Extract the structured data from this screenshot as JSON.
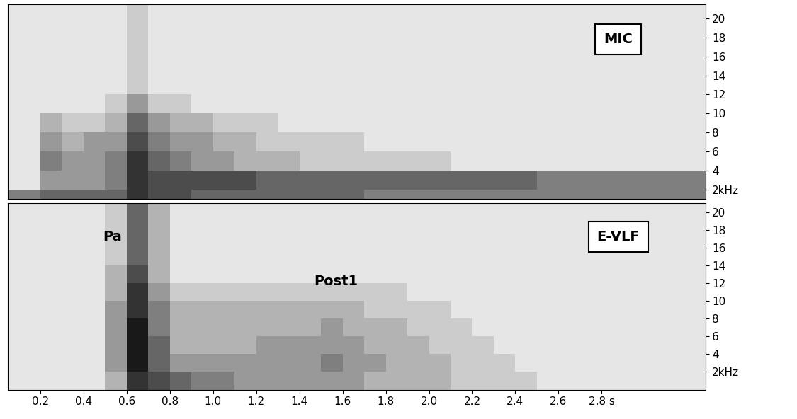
{
  "chart_data": [
    {
      "type": "heatmap",
      "title": "MIC",
      "tick_labels": "y",
      "xlim": [
        0.05,
        3.28
      ],
      "ylim": [
        1,
        21.5
      ],
      "xticks": [
        0.2,
        0.4,
        0.6,
        0.8,
        1.0,
        1.2,
        1.4,
        1.6,
        1.8,
        2.0,
        2.2,
        2.4,
        2.6,
        {
          "value": 2.8,
          "label": "2.8 s"
        }
      ],
      "yticks": [
        {
          "value": 2,
          "label": "2kHz"
        },
        4,
        6,
        8,
        10,
        12,
        14,
        16,
        18,
        20
      ],
      "zlim": [
        0,
        10
      ],
      "time_edges": [
        0.0,
        0.1,
        0.2,
        0.3,
        0.4,
        0.5,
        0.6,
        0.7,
        0.8,
        0.9,
        1.0,
        1.1,
        1.2,
        1.3,
        1.4,
        1.5,
        1.6,
        1.7,
        1.8,
        1.9,
        2.0,
        2.1,
        2.2,
        2.3,
        2.4,
        2.5,
        2.6,
        2.7,
        2.8,
        2.9,
        3.0,
        3.1,
        3.2,
        3.3
      ],
      "freq_edges": [
        0,
        2,
        4,
        6,
        8,
        10,
        12,
        14,
        16,
        18,
        20,
        22
      ],
      "cells": [
        [
          5,
          5,
          6,
          6,
          6,
          6,
          8,
          7,
          7,
          6,
          6,
          6,
          6,
          6,
          6,
          6,
          6,
          5,
          5,
          5,
          5,
          5,
          5,
          5,
          5,
          5,
          5,
          5,
          5,
          5,
          5,
          5,
          5
        ],
        [
          1,
          1,
          4,
          4,
          4,
          5,
          8,
          7,
          7,
          7,
          7,
          7,
          6,
          6,
          6,
          6,
          6,
          6,
          6,
          6,
          6,
          6,
          6,
          6,
          6,
          5,
          5,
          5,
          5,
          5,
          5,
          5,
          5
        ],
        [
          1,
          1,
          5,
          4,
          4,
          5,
          8,
          6,
          5,
          4,
          4,
          3,
          3,
          3,
          2,
          2,
          2,
          2,
          2,
          2,
          2,
          1,
          1,
          1,
          1,
          1,
          1,
          1,
          1,
          1,
          1,
          1,
          1
        ],
        [
          1,
          1,
          4,
          3,
          4,
          4,
          7,
          5,
          4,
          4,
          3,
          3,
          2,
          2,
          2,
          2,
          2,
          1,
          1,
          1,
          1,
          1,
          1,
          1,
          1,
          1,
          1,
          1,
          1,
          1,
          1,
          1,
          1
        ],
        [
          1,
          1,
          3,
          2,
          2,
          3,
          6,
          4,
          3,
          3,
          2,
          2,
          2,
          1,
          1,
          1,
          1,
          1,
          1,
          1,
          1,
          1,
          1,
          1,
          1,
          1,
          1,
          1,
          1,
          1,
          1,
          1,
          1
        ],
        [
          1,
          1,
          1,
          1,
          1,
          2,
          4,
          2,
          2,
          1,
          1,
          1,
          1,
          1,
          1,
          1,
          1,
          1,
          1,
          1,
          1,
          1,
          1,
          1,
          1,
          1,
          1,
          1,
          1,
          1,
          1,
          1,
          1
        ],
        [
          1,
          1,
          1,
          1,
          1,
          1,
          2,
          1,
          1,
          1,
          1,
          1,
          1,
          1,
          1,
          1,
          1,
          1,
          1,
          1,
          1,
          1,
          1,
          1,
          1,
          1,
          1,
          1,
          1,
          1,
          1,
          1,
          1
        ],
        [
          1,
          1,
          1,
          1,
          1,
          1,
          2,
          1,
          1,
          1,
          1,
          1,
          1,
          1,
          1,
          1,
          1,
          1,
          1,
          1,
          1,
          1,
          1,
          1,
          1,
          1,
          1,
          1,
          1,
          1,
          1,
          1,
          1
        ],
        [
          1,
          1,
          1,
          1,
          1,
          1,
          2,
          1,
          1,
          1,
          1,
          1,
          1,
          1,
          1,
          1,
          1,
          1,
          1,
          1,
          1,
          1,
          1,
          1,
          1,
          1,
          1,
          1,
          1,
          1,
          1,
          1,
          1
        ],
        [
          1,
          1,
          1,
          1,
          1,
          1,
          2,
          1,
          1,
          1,
          1,
          1,
          1,
          1,
          1,
          1,
          1,
          1,
          1,
          1,
          1,
          1,
          1,
          1,
          1,
          1,
          1,
          1,
          1,
          1,
          1,
          1,
          1
        ],
        [
          1,
          1,
          1,
          1,
          1,
          1,
          2,
          1,
          1,
          1,
          1,
          1,
          1,
          1,
          1,
          1,
          1,
          1,
          1,
          1,
          1,
          1,
          1,
          1,
          1,
          1,
          1,
          1,
          1,
          1,
          1,
          1,
          1
        ]
      ]
    },
    {
      "type": "heatmap",
      "title": "E-VLF",
      "annotations": [
        "Pa",
        "Post1"
      ],
      "xlim": [
        0.05,
        3.28
      ],
      "ylim": [
        0,
        21
      ],
      "xticks": [
        0.2,
        0.4,
        0.6,
        0.8,
        1.0,
        1.2,
        1.4,
        1.6,
        1.8,
        2.0,
        2.2,
        2.4,
        2.6,
        {
          "value": 2.8,
          "label": "2.8 s"
        }
      ],
      "yticks": [
        {
          "value": 2,
          "label": "2kHz"
        },
        4,
        6,
        8,
        10,
        12,
        14,
        16,
        18,
        20
      ],
      "zlim": [
        0,
        10
      ],
      "time_edges": [
        0.0,
        0.1,
        0.2,
        0.3,
        0.4,
        0.5,
        0.6,
        0.7,
        0.8,
        0.9,
        1.0,
        1.1,
        1.2,
        1.3,
        1.4,
        1.5,
        1.6,
        1.7,
        1.8,
        1.9,
        2.0,
        2.1,
        2.2,
        2.3,
        2.4,
        2.5,
        2.6,
        2.7,
        2.8,
        2.9,
        3.0,
        3.1,
        3.2,
        3.3
      ],
      "freq_edges": [
        0,
        2,
        4,
        6,
        8,
        10,
        12,
        14,
        16,
        18,
        20,
        22
      ],
      "cells": [
        [
          1,
          1,
          1,
          1,
          1,
          3,
          8,
          7,
          6,
          5,
          5,
          4,
          4,
          4,
          4,
          4,
          4,
          3,
          3,
          3,
          3,
          2,
          2,
          2,
          2,
          1,
          1,
          1,
          1,
          1,
          1,
          1,
          1
        ],
        [
          1,
          1,
          1,
          1,
          1,
          4,
          9,
          6,
          4,
          4,
          4,
          4,
          4,
          4,
          4,
          5,
          4,
          4,
          3,
          3,
          3,
          2,
          2,
          2,
          1,
          1,
          1,
          1,
          1,
          1,
          1,
          1,
          1
        ],
        [
          1,
          1,
          1,
          1,
          1,
          4,
          9,
          6,
          3,
          3,
          3,
          3,
          4,
          4,
          4,
          4,
          4,
          3,
          3,
          3,
          2,
          2,
          2,
          1,
          1,
          1,
          1,
          1,
          1,
          1,
          1,
          1,
          1
        ],
        [
          1,
          1,
          1,
          1,
          1,
          4,
          9,
          5,
          3,
          3,
          3,
          3,
          3,
          3,
          3,
          4,
          3,
          3,
          3,
          2,
          2,
          2,
          1,
          1,
          1,
          1,
          1,
          1,
          1,
          1,
          1,
          1,
          1
        ],
        [
          1,
          1,
          1,
          1,
          1,
          4,
          8,
          5,
          3,
          3,
          3,
          3,
          3,
          3,
          3,
          3,
          3,
          2,
          2,
          2,
          2,
          1,
          1,
          1,
          1,
          1,
          1,
          1,
          1,
          1,
          1,
          1,
          1
        ],
        [
          1,
          1,
          1,
          1,
          1,
          3,
          8,
          4,
          2,
          2,
          2,
          2,
          2,
          2,
          2,
          2,
          2,
          2,
          2,
          1,
          1,
          1,
          1,
          1,
          1,
          1,
          1,
          1,
          1,
          1,
          1,
          1,
          1
        ],
        [
          1,
          1,
          1,
          1,
          1,
          3,
          7,
          3,
          1,
          1,
          1,
          1,
          1,
          1,
          1,
          1,
          1,
          1,
          1,
          1,
          1,
          1,
          1,
          1,
          1,
          1,
          1,
          1,
          1,
          1,
          1,
          1,
          1
        ],
        [
          1,
          1,
          1,
          1,
          1,
          2,
          6,
          3,
          1,
          1,
          1,
          1,
          1,
          1,
          1,
          1,
          1,
          1,
          1,
          1,
          1,
          1,
          1,
          1,
          1,
          1,
          1,
          1,
          1,
          1,
          1,
          1,
          1
        ],
        [
          1,
          1,
          1,
          1,
          1,
          2,
          6,
          3,
          1,
          1,
          1,
          1,
          1,
          1,
          1,
          1,
          1,
          1,
          1,
          1,
          1,
          1,
          1,
          1,
          1,
          1,
          1,
          1,
          1,
          1,
          1,
          1,
          1
        ],
        [
          1,
          1,
          1,
          1,
          1,
          2,
          6,
          3,
          1,
          1,
          1,
          1,
          1,
          1,
          1,
          1,
          1,
          1,
          1,
          1,
          1,
          1,
          1,
          1,
          1,
          1,
          1,
          1,
          1,
          1,
          1,
          1,
          1
        ],
        [
          1,
          1,
          1,
          1,
          1,
          2,
          6,
          3,
          1,
          1,
          1,
          1,
          1,
          1,
          1,
          1,
          1,
          1,
          1,
          1,
          1,
          1,
          1,
          1,
          1,
          1,
          1,
          1,
          1,
          1,
          1,
          1,
          1
        ]
      ]
    }
  ]
}
